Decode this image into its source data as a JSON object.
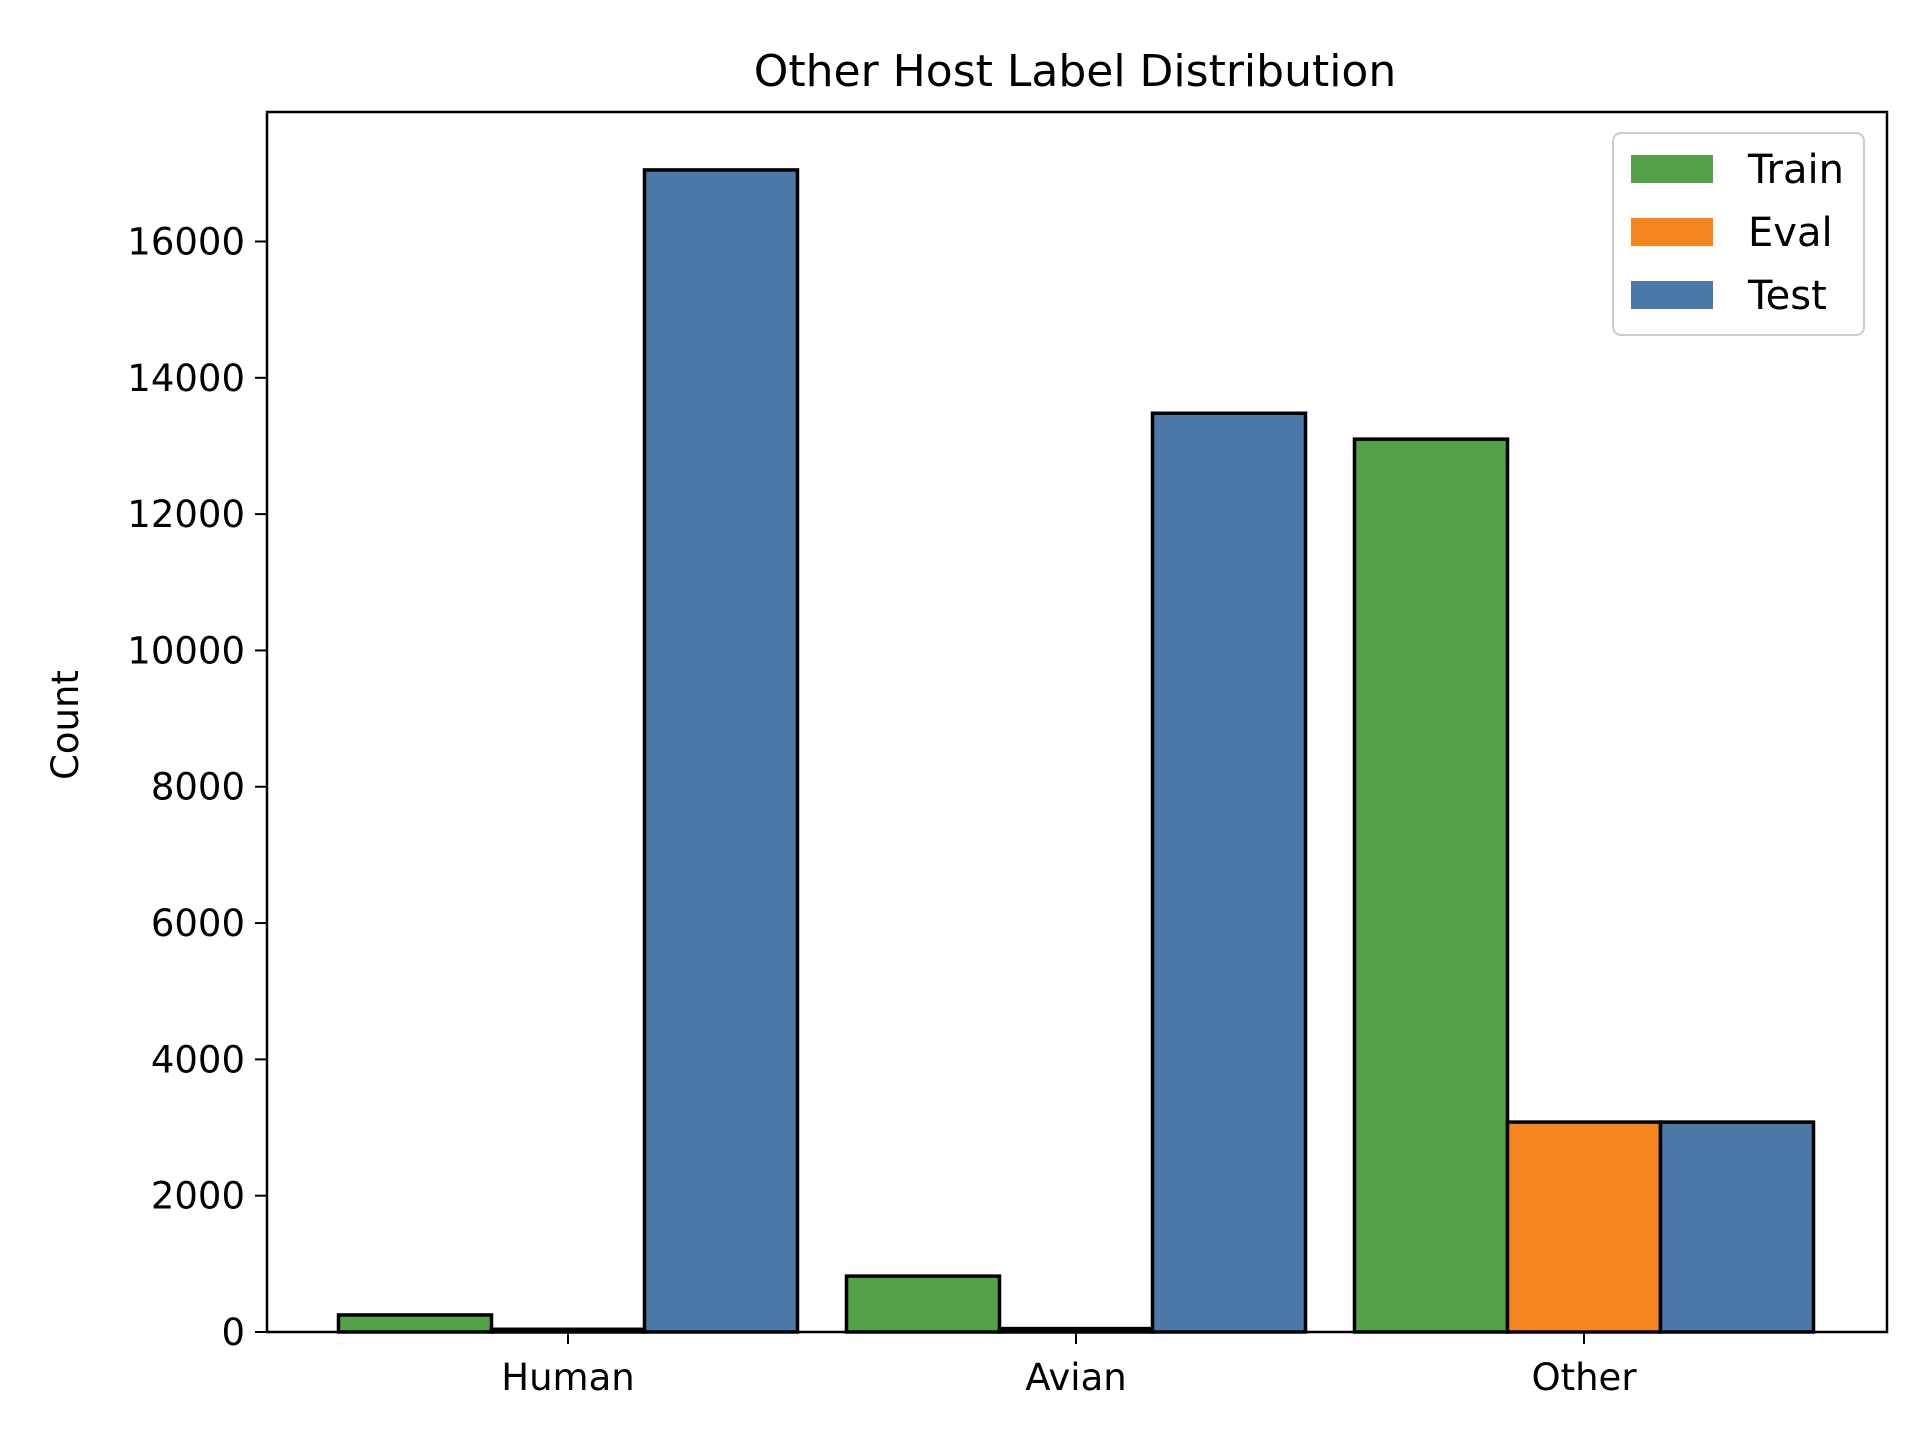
{
  "chart_data": {
    "type": "bar",
    "title": "Other Host Label Distribution",
    "xlabel": "",
    "ylabel": "Count",
    "categories": [
      "Human",
      "Avian",
      "Other"
    ],
    "series": [
      {
        "name": "Train",
        "color": "#55a14a",
        "values": [
          250,
          820,
          13100
        ]
      },
      {
        "name": "Eval",
        "color": "#f5861f",
        "values": [
          40,
          50,
          3080
        ]
      },
      {
        "name": "Test",
        "color": "#4c78a8",
        "values": [
          17050,
          13480,
          3080
        ]
      }
    ],
    "ylim": [
      0,
      17900
    ],
    "yticks": [
      "0",
      "2000",
      "4000",
      "6000",
      "8000",
      "10000",
      "12000",
      "14000",
      "16000"
    ],
    "grid": false,
    "legend_position": "top-right"
  }
}
